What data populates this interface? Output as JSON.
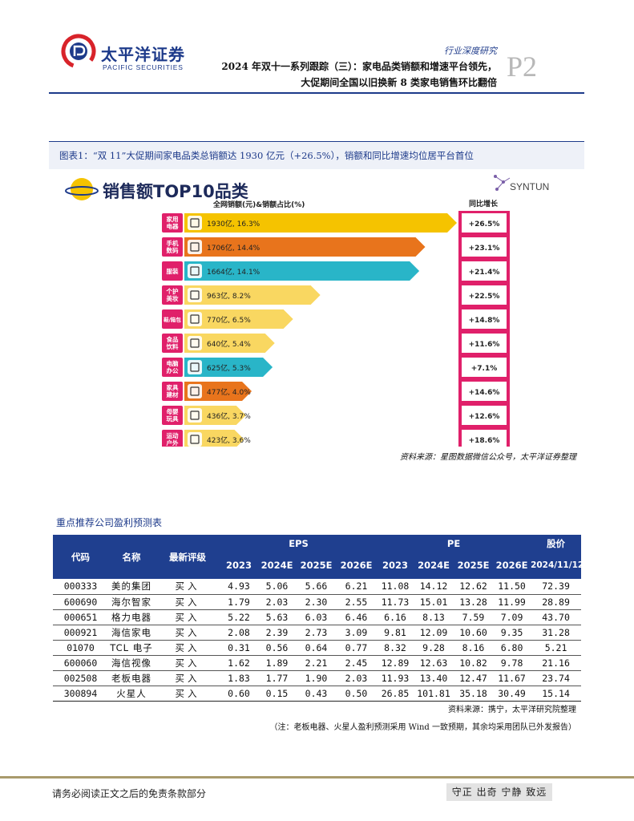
{
  "header": {
    "logo_cn": "太平洋证券",
    "logo_en": "PACIFIC SECURITIES",
    "report_type": "行业深度研究",
    "page_num": "P2",
    "title_line1": "2024 年双十一系列跟踪（三）：家电品类销额和增速平台领先，",
    "title_line2": "大促期间全国以旧换新 8 类家电销售环比翻倍"
  },
  "figure": {
    "caption": "图表1：“双 11”大促期间家电品类总销额达 1930 亿元（+26.5%），销额和同比增速均位居平台首位",
    "source": "资料来源：星图数据微信公众号，太平洋证券整理"
  },
  "chart_data": {
    "type": "bar",
    "title": "销售额TOP10品类",
    "subtitle": "全网销额(元)&销额占比(%)",
    "growth_header": "同比增长",
    "brand": "SYNTUN",
    "categories": [
      "家用电器",
      "手机数码",
      "服装",
      "个护美妆",
      "鞋/箱包",
      "食品饮料",
      "电脑办公",
      "家具建材",
      "母婴玩具",
      "运动户外"
    ],
    "category_lines": [
      [
        "家用",
        "电器"
      ],
      [
        "手机",
        "数码"
      ],
      [
        "服装"
      ],
      [
        "个护",
        "美妆"
      ],
      [
        "鞋/箱包"
      ],
      [
        "食品",
        "饮料"
      ],
      [
        "电脑",
        "办公"
      ],
      [
        "家具",
        "建材"
      ],
      [
        "母婴",
        "玩具"
      ],
      [
        "运动",
        "户外"
      ]
    ],
    "icons": [
      "appliance-icon",
      "phone-icon",
      "shirt-icon",
      "cosmetics-icon",
      "shoe-icon",
      "bottle-icon",
      "monitor-icon",
      "cabinet-icon",
      "baby-bottle-icon",
      "ball-icon"
    ],
    "values": [
      1930,
      1706,
      1664,
      963,
      770,
      640,
      625,
      477,
      436,
      423
    ],
    "shares": [
      16.3,
      14.4,
      14.1,
      8.2,
      6.5,
      5.4,
      5.3,
      4.0,
      3.7,
      3.6
    ],
    "value_labels": [
      "1930亿, 16.3%",
      "1706亿, 14.4%",
      "1664亿, 14.1%",
      "963亿, 8.2%",
      "770亿, 6.5%",
      "640亿, 5.4%",
      "625亿, 5.3%",
      "477亿, 4.0%",
      "436亿, 3.7%",
      "423亿, 3.6%"
    ],
    "growth": [
      "+26.5%",
      "+23.1%",
      "+21.4%",
      "+22.5%",
      "+14.8%",
      "+11.6%",
      "+7.1%",
      "+14.6%",
      "+12.6%",
      "+18.6%"
    ],
    "colors": [
      "#f5c300",
      "#e8741c",
      "#29b5c8",
      "#f9d761",
      "#f9d761",
      "#f9d761",
      "#29b5c8",
      "#e8741c",
      "#f9d761",
      "#f9d761"
    ],
    "label_color": "#e0206a",
    "growth_color": "#e0206a"
  },
  "table": {
    "caption": "重点推荐公司盈利预测表",
    "headers": {
      "code": "代码",
      "name": "名称",
      "rating": "最新评级",
      "eps": "EPS",
      "pe": "PE",
      "price": "股价",
      "price_date": "2024/11/12",
      "years": [
        "2023",
        "2024E",
        "2025E",
        "2026E"
      ]
    },
    "rows": [
      {
        "code": "000333",
        "name": "美的集团",
        "rating": "买入",
        "eps": [
          "4.93",
          "5.06",
          "5.66",
          "6.21"
        ],
        "pe": [
          "11.08",
          "14.12",
          "12.62",
          "11.50"
        ],
        "price": "72.39"
      },
      {
        "code": "600690",
        "name": "海尔智家",
        "rating": "买入",
        "eps": [
          "1.79",
          "2.03",
          "2.30",
          "2.55"
        ],
        "pe": [
          "11.73",
          "15.01",
          "13.28",
          "11.99"
        ],
        "price": "28.89"
      },
      {
        "code": "000651",
        "name": "格力电器",
        "rating": "买入",
        "eps": [
          "5.22",
          "5.63",
          "6.03",
          "6.46"
        ],
        "pe": [
          "6.16",
          "8.13",
          "7.59",
          "7.09"
        ],
        "price": "43.70"
      },
      {
        "code": "000921",
        "name": "海信家电",
        "rating": "买入",
        "eps": [
          "2.08",
          "2.39",
          "2.73",
          "3.09"
        ],
        "pe": [
          "9.81",
          "12.09",
          "10.60",
          "9.35"
        ],
        "price": "31.28"
      },
      {
        "code": "01070",
        "name": "TCL 电子",
        "rating": "买入",
        "eps": [
          "0.31",
          "0.56",
          "0.64",
          "0.77"
        ],
        "pe": [
          "8.32",
          "9.28",
          "8.16",
          "6.80"
        ],
        "price": "5.21"
      },
      {
        "code": "600060",
        "name": "海信视像",
        "rating": "买入",
        "eps": [
          "1.62",
          "1.89",
          "2.21",
          "2.45"
        ],
        "pe": [
          "12.89",
          "12.63",
          "10.82",
          "9.78"
        ],
        "price": "21.16"
      },
      {
        "code": "002508",
        "name": "老板电器",
        "rating": "买入",
        "eps": [
          "1.83",
          "1.77",
          "1.90",
          "2.03"
        ],
        "pe": [
          "11.93",
          "13.40",
          "12.47",
          "11.67"
        ],
        "price": "23.74"
      },
      {
        "code": "300894",
        "name": "火星人",
        "rating": "买入",
        "eps": [
          "0.60",
          "0.15",
          "0.43",
          "0.50"
        ],
        "pe": [
          "26.85",
          "101.81",
          "35.18",
          "30.49"
        ],
        "price": "15.14"
      }
    ],
    "source": "资料来源：携宁，太平洋研究院整理",
    "note": "（注：老板电器、火星人盈利预测采用 Wind 一致预期，其余均采用团队已外发报告）"
  },
  "footer": {
    "disclaimer": "请务必阅读正文之后的免责条款部分",
    "motto": "守正 出奇 宁静 致远"
  }
}
